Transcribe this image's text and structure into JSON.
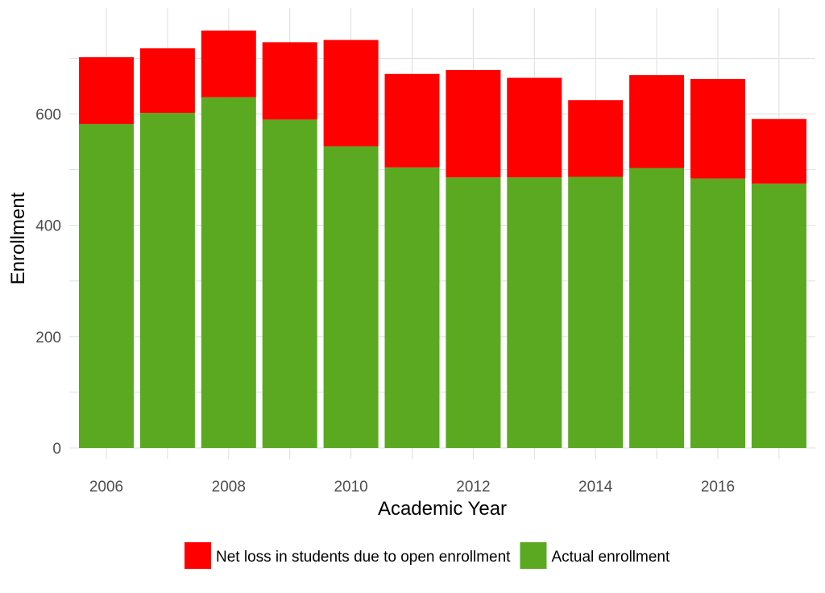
{
  "chart_data": {
    "type": "bar",
    "stacked": true,
    "categories": [
      "2006",
      "2007",
      "2008",
      "2009",
      "2010",
      "2011",
      "2012",
      "2013",
      "2014",
      "2015",
      "2016",
      "2017"
    ],
    "series": [
      {
        "name": "Actual enrollment",
        "color": "#5aa921",
        "values": [
          582,
          602,
          630,
          590,
          542,
          504,
          486,
          486,
          487,
          503,
          484,
          475
        ]
      },
      {
        "name": "Net loss in students due to open enrollment",
        "color": "#ff0000",
        "values": [
          120,
          116,
          120,
          139,
          191,
          168,
          193,
          179,
          138,
          167,
          179,
          116
        ]
      }
    ],
    "x_ticks": [
      "2006",
      "2008",
      "2010",
      "2012",
      "2014",
      "2016"
    ],
    "y_ticks": [
      "0",
      "200",
      "400",
      "600"
    ],
    "xlabel": "Academic Year",
    "ylabel": "Enrollment",
    "ylim": [
      0,
      780
    ],
    "grid": true,
    "legend": {
      "position": "bottom",
      "order": [
        "Net loss in students due to open enrollment",
        "Actual enrollment"
      ]
    }
  }
}
